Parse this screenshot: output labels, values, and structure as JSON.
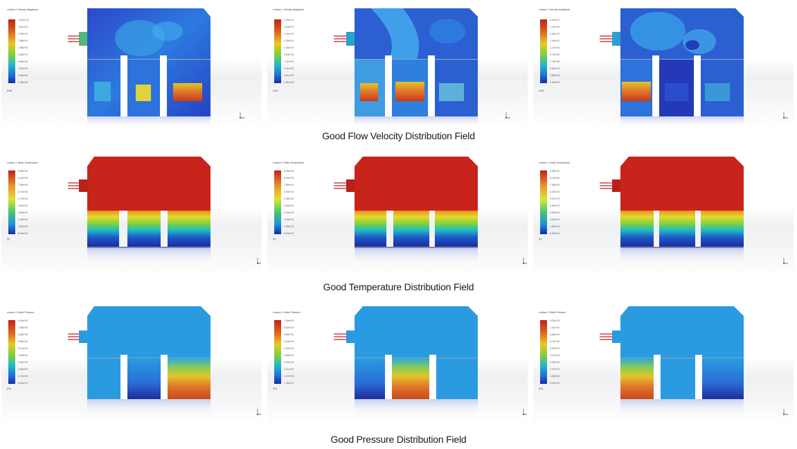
{
  "colors": {
    "velocity_low": "#1e4ed8",
    "velocity_body": "#2a6fe0",
    "temperature_hot": "#c8241b",
    "temperature_cold": "#1d2c9c",
    "pressure_body": "#2a9be0",
    "pressure_high": "#d8531d"
  },
  "rows": [
    {
      "caption": "Good Flow Velocity Distribution Field",
      "panels": [
        {
          "legend_title": "contour-1 Velocity Magnitude",
          "legend_values": [
            "2.211e+01",
            "1.61e+01",
            "1.06e+01",
            "7.88e+01",
            "1.58e+01",
            "1.58e+01",
            "6.65e+00",
            "4.02e+00",
            "2.68e+00",
            "1.48e+00"
          ],
          "legend_unit": "[m/s]"
        },
        {
          "legend_title": "contour-1 Velocity Magnitude",
          "legend_values": [
            "1.83e+01",
            "1.63e+01",
            "1.44e+01",
            "1.26e+01",
            "1.06e+01",
            "9.03e+00",
            "7.21e+00",
            "5.41e+00",
            "3.61e+00",
            "1.81e+00"
          ],
          "legend_unit": "[m/s]"
        },
        {
          "legend_title": "contour-1 Velocity Magnitude",
          "legend_values": [
            "1.94e+01",
            "1.75e+01",
            "1.55e+01",
            "1.36e+01",
            "1.17e+01",
            "9.73e+00",
            "7.78e+00",
            "5.84e+00",
            "3.89e+00",
            "1.94e+00"
          ],
          "legend_unit": "[m/s]"
        }
      ]
    },
    {
      "caption": "Good Temperature Distribution Field",
      "panels": [
        {
          "legend_title": "contour-1 Static Temperature",
          "legend_values": [
            "8.38e+02",
            "6.19e+02",
            "7.50e+02",
            "6.74e+02",
            "5.73e+02",
            "4.60e+02",
            "3.50e+02",
            "2.49e+02",
            "1.60e+02",
            "8.03e+01"
          ],
          "legend_unit": "[K]"
        },
        {
          "legend_title": "contour-1 Static Temperature",
          "legend_values": [
            "8.38e+02",
            "6.46e+02",
            "7.58e+02",
            "6.04e+02",
            "5.36e+02",
            "4.69e+02",
            "4.02e+02",
            "3.35e+02",
            "1.68e+02",
            "6.00e+01"
          ],
          "legend_unit": "[K]"
        },
        {
          "legend_title": "contour-1 Static Temperature",
          "legend_values": [
            "8.38e+02",
            "8.14e+02",
            "7.38e+02",
            "6.02e+02",
            "5.67e+02",
            "4.84e+02",
            "4.02e+02",
            "3.23e+02",
            "1.60e+02",
            "8.03e+01"
          ],
          "legend_unit": "[K]"
        }
      ]
    },
    {
      "caption": "Good Pressure Distribution Field",
      "panels": [
        {
          "legend_title": "contour-1 Static Pressure",
          "legend_values": [
            "8.50e+02",
            "7.65e+02",
            "6.80e+02",
            "5.95e+02",
            "5.10e+02",
            "4.25e+02",
            "3.40e+02",
            "2.55e+02",
            "1.70e+02",
            "8.50e+01"
          ],
          "legend_unit": "[Pa]"
        },
        {
          "legend_title": "contour-1 Static Pressure",
          "legend_values": [
            "7.36e+02",
            "6.62e+02",
            "5.89e+02",
            "5.15e+02",
            "4.42e+02",
            "3.68e+02",
            "2.94e+02",
            "2.21e+02",
            "1.47e+02",
            "7.36e+01"
          ],
          "legend_unit": "[Pa]"
        },
        {
          "legend_title": "contour-1 Static Pressure",
          "legend_values": [
            "8.23e+02",
            "7.41e+02",
            "6.58e+02",
            "5.76e+02",
            "4.94e+02",
            "4.12e+02",
            "3.29e+02",
            "2.47e+02",
            "1.65e+02",
            "8.23e+01"
          ],
          "legend_unit": "[Pa]"
        }
      ]
    }
  ]
}
